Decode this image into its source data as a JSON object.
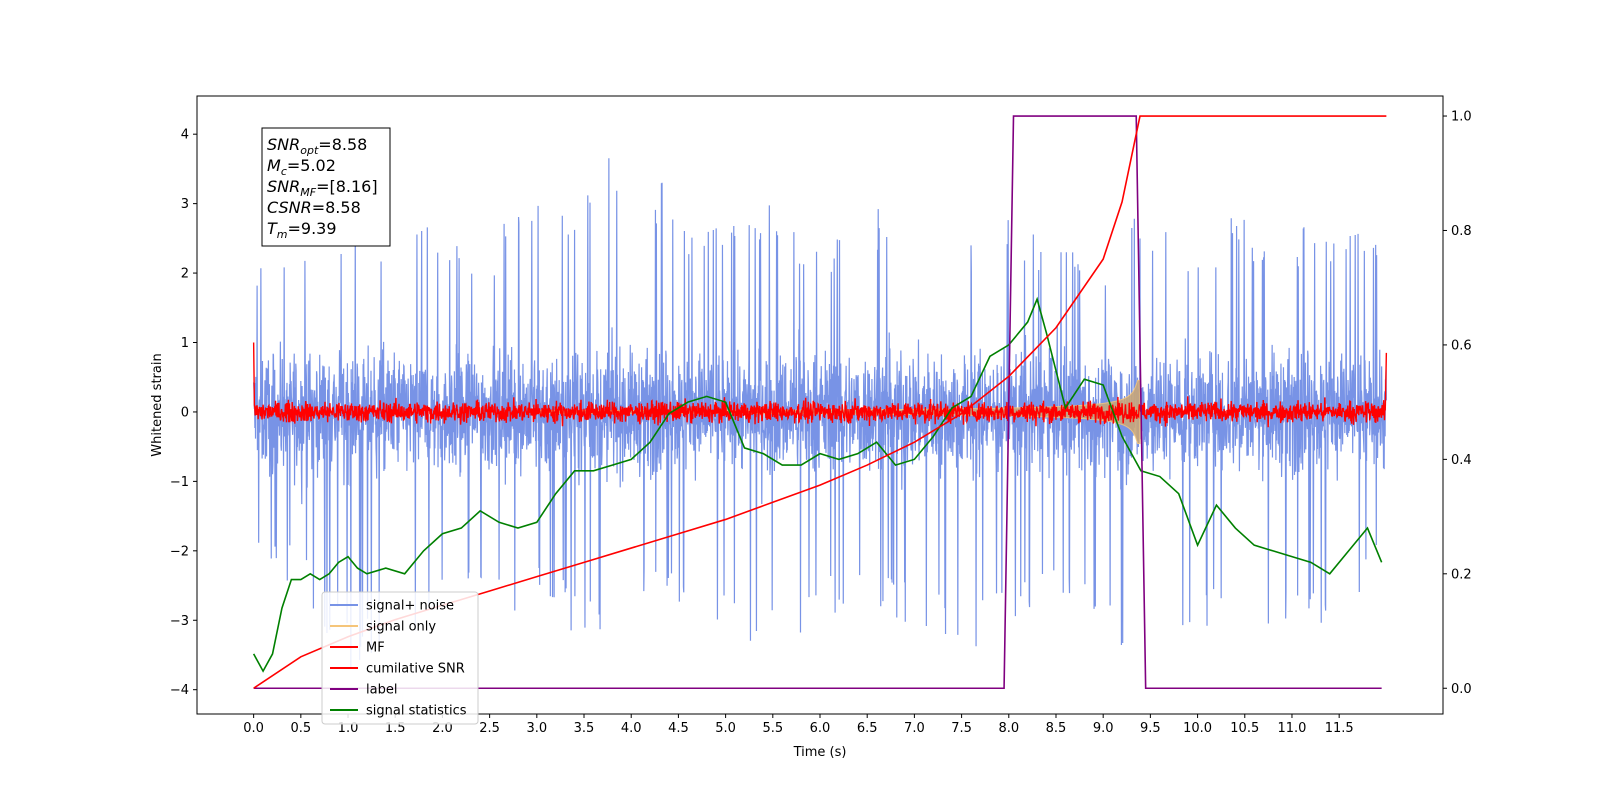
{
  "chart_data": {
    "type": "line",
    "xlabel": "Time (s)",
    "ylabel_left": "Whitened strain",
    "ylabel_right": "",
    "xlim": [
      -0.6,
      12.6
    ],
    "ylim_left": [
      -4.35,
      4.55
    ],
    "ylim_right": [
      -0.045,
      1.035
    ],
    "x_ticks": [
      "0.0",
      "0.5",
      "1.0",
      "1.5",
      "2.0",
      "2.5",
      "3.0",
      "3.5",
      "4.0",
      "4.5",
      "5.0",
      "5.5",
      "6.0",
      "6.5",
      "7.0",
      "7.5",
      "8.0",
      "8.5",
      "9.0",
      "9.5",
      "10.0",
      "10.5",
      "11.0",
      "11.5"
    ],
    "y_ticks_left": [
      "4",
      "3",
      "2",
      "1",
      "0",
      "−1",
      "−2",
      "−3",
      "−4"
    ],
    "y_ticks_right": [
      "1.0",
      "0.8",
      "0.6",
      "0.4",
      "0.2",
      "0.0"
    ],
    "grid": false,
    "legend_position": "lower-left",
    "annotation": {
      "snr_opt": {
        "name": "SNR",
        "sub": "opt",
        "value": "=8.58"
      },
      "mc": {
        "name": "M",
        "sub": "c",
        "value": "=5.02"
      },
      "snr_mf": {
        "name": "SNR",
        "sub": "MF",
        "value": "=[8.16]"
      },
      "csnr": {
        "name": "CSNR",
        "sub": "",
        "value": "=8.58"
      },
      "tm": {
        "name": "T",
        "sub": "m",
        "value": "=9.39"
      }
    },
    "series": [
      {
        "name": "signal+ noise",
        "color": "#7893e6",
        "axis": "left",
        "x_range": [
          0.0,
          12.0
        ],
        "envelope_upper": [
          2.3,
          2.6,
          3.0,
          2.4,
          2.8,
          2.5,
          3.2,
          3.4,
          4.1,
          3.0,
          2.6,
          3.1,
          2.4,
          3.2,
          2.6,
          2.4,
          2.8,
          2.6,
          2.4,
          3.0,
          2.6,
          2.9,
          2.7,
          2.8,
          2.3
        ],
        "envelope_lower": [
          -2.0,
          -2.6,
          -3.7,
          -3.4,
          -2.9,
          -3.0,
          -2.8,
          -3.4,
          -2.9,
          -3.0,
          -3.2,
          -3.6,
          -3.0,
          -2.9,
          -3.3,
          -3.5,
          -3.2,
          -3.0,
          -3.1,
          -3.9,
          -3.1,
          -3.2,
          -3.4,
          -3.3,
          -2.0
        ]
      },
      {
        "name": "signal only",
        "color": "#f5c57a",
        "axis": "left",
        "chirp_start": 3.0,
        "chirp_end": 9.39,
        "peak_amplitude": 0.95
      },
      {
        "name": "MF",
        "color": "#ff0000",
        "axis": "left",
        "x_range": [
          0.0,
          12.0
        ],
        "noise_amplitude": 0.25
      },
      {
        "name": "cumilative SNR",
        "color": "#ff0000",
        "axis": "right",
        "x": [
          0.0,
          0.5,
          1.0,
          1.5,
          2.0,
          2.5,
          3.0,
          3.5,
          4.0,
          4.5,
          5.0,
          5.5,
          6.0,
          6.5,
          7.0,
          7.5,
          8.0,
          8.5,
          9.0,
          9.2,
          9.39,
          9.4,
          10.0,
          11.0,
          12.0
        ],
        "y": [
          0.0,
          0.055,
          0.09,
          0.12,
          0.145,
          0.17,
          0.195,
          0.22,
          0.245,
          0.27,
          0.295,
          0.325,
          0.355,
          0.39,
          0.43,
          0.48,
          0.545,
          0.63,
          0.75,
          0.85,
          1.0,
          1.0,
          1.0,
          1.0,
          1.0
        ]
      },
      {
        "name": "label",
        "color": "#800080",
        "axis": "right",
        "x": [
          0.0,
          7.95,
          8.05,
          9.35,
          9.45,
          11.95
        ],
        "y": [
          0.0,
          0.0,
          1.0,
          1.0,
          0.0,
          0.0
        ]
      },
      {
        "name": "signal statistics",
        "color": "#008000",
        "axis": "right",
        "x": [
          0.0,
          0.1,
          0.2,
          0.3,
          0.4,
          0.5,
          0.6,
          0.7,
          0.8,
          0.9,
          1.0,
          1.1,
          1.2,
          1.4,
          1.6,
          1.8,
          2.0,
          2.2,
          2.4,
          2.6,
          2.8,
          3.0,
          3.2,
          3.4,
          3.6,
          3.8,
          4.0,
          4.2,
          4.4,
          4.6,
          4.8,
          5.0,
          5.2,
          5.4,
          5.6,
          5.8,
          6.0,
          6.2,
          6.4,
          6.6,
          6.8,
          7.0,
          7.2,
          7.4,
          7.6,
          7.8,
          8.0,
          8.2,
          8.3,
          8.4,
          8.6,
          8.8,
          9.0,
          9.2,
          9.4,
          9.6,
          9.8,
          10.0,
          10.2,
          10.4,
          10.6,
          10.8,
          11.0,
          11.2,
          11.4,
          11.6,
          11.8,
          11.95
        ],
        "y": [
          0.06,
          0.03,
          0.06,
          0.14,
          0.19,
          0.19,
          0.2,
          0.19,
          0.2,
          0.22,
          0.23,
          0.21,
          0.2,
          0.21,
          0.2,
          0.24,
          0.27,
          0.28,
          0.31,
          0.29,
          0.28,
          0.29,
          0.34,
          0.38,
          0.38,
          0.39,
          0.4,
          0.43,
          0.48,
          0.5,
          0.51,
          0.5,
          0.42,
          0.41,
          0.39,
          0.39,
          0.41,
          0.4,
          0.41,
          0.43,
          0.39,
          0.4,
          0.44,
          0.49,
          0.51,
          0.58,
          0.6,
          0.64,
          0.68,
          0.62,
          0.49,
          0.54,
          0.53,
          0.44,
          0.38,
          0.37,
          0.34,
          0.25,
          0.32,
          0.28,
          0.25,
          0.24,
          0.23,
          0.22,
          0.2,
          0.24,
          0.28,
          0.22
        ]
      }
    ]
  }
}
